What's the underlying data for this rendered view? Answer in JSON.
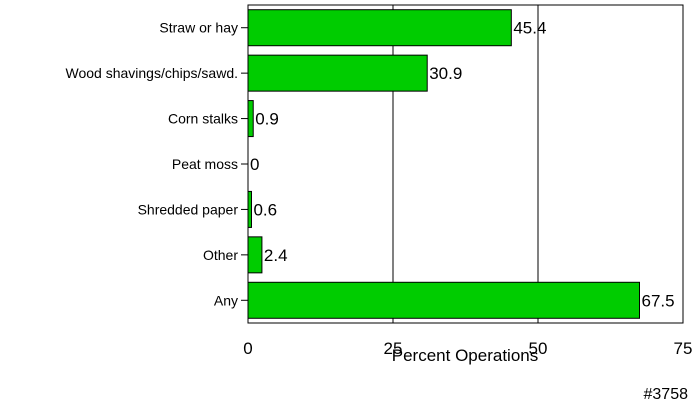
{
  "chart_data": {
    "type": "bar",
    "orientation": "horizontal",
    "categories": [
      "Straw or hay",
      "Wood shavings/chips/sawd.",
      "Corn stalks",
      "Peat moss",
      "Shredded paper",
      "Other",
      "Any"
    ],
    "values": [
      45.4,
      30.9,
      0.9,
      0,
      0.6,
      2.4,
      67.5
    ],
    "value_labels": [
      "45.4",
      "30.9",
      "0.9",
      "0",
      "0.6",
      "2.4",
      "67.5"
    ],
    "xlabel": "Percent Operations",
    "xlim": [
      0,
      75
    ],
    "xticks": [
      0,
      25,
      50,
      75
    ],
    "xtick_labels": [
      "0",
      "25",
      "50",
      "75"
    ],
    "vertical_gridlines_at": [
      25,
      50
    ],
    "bar_color": "#00cc00",
    "figure_id": "#3758"
  }
}
